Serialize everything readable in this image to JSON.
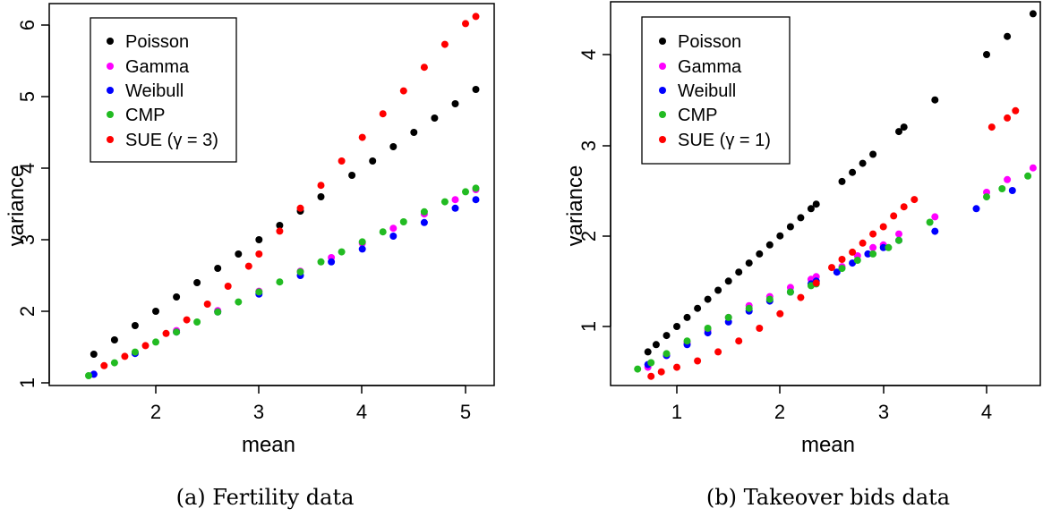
{
  "chart_data": [
    {
      "type": "scatter",
      "caption": "(a) Fertility data",
      "xlabel": "mean",
      "ylabel": "variance",
      "xlim": [
        1.3,
        5.2
      ],
      "ylim": [
        0.95,
        6.3
      ],
      "xticks": [
        "2",
        "3",
        "4",
        "5"
      ],
      "yticks": [
        "1",
        "2",
        "3",
        "4",
        "5",
        "6"
      ],
      "legend": {
        "placement": "top-left",
        "entries": [
          {
            "label": "Poisson",
            "color": "#000000"
          },
          {
            "label": "Gamma",
            "color": "#ff00ff"
          },
          {
            "label": "Weibull",
            "color": "#0000ff"
          },
          {
            "label": "CMP",
            "color": "#22bb22"
          },
          {
            "label": "SUE (γ = 3)",
            "color": "#ff0000"
          }
        ]
      },
      "series": [
        {
          "name": "Poisson",
          "color": "#000000",
          "x": [
            1.4,
            1.6,
            1.8,
            2.0,
            2.2,
            2.4,
            2.6,
            2.8,
            3.0,
            3.2,
            3.4,
            3.6,
            3.9,
            4.1,
            4.3,
            4.5,
            4.7,
            4.9,
            5.1
          ],
          "y": [
            1.4,
            1.6,
            1.8,
            2.0,
            2.2,
            2.4,
            2.6,
            2.8,
            3.0,
            3.2,
            3.4,
            3.6,
            3.9,
            4.1,
            4.3,
            4.5,
            4.7,
            4.9,
            5.1
          ]
        },
        {
          "name": "Gamma",
          "color": "#ff00ff",
          "x": [
            1.4,
            1.8,
            2.2,
            2.6,
            3.0,
            3.4,
            3.7,
            4.0,
            4.3,
            4.6,
            4.9,
            5.1
          ],
          "y": [
            1.12,
            1.42,
            1.73,
            2.01,
            2.28,
            2.56,
            2.75,
            2.95,
            3.16,
            3.36,
            3.56,
            3.7
          ]
        },
        {
          "name": "Weibull",
          "color": "#0000ff",
          "x": [
            1.4,
            1.8,
            2.2,
            2.6,
            3.0,
            3.4,
            3.7,
            4.0,
            4.3,
            4.6,
            4.9,
            5.1
          ],
          "y": [
            1.12,
            1.41,
            1.71,
            1.99,
            2.24,
            2.5,
            2.69,
            2.87,
            3.05,
            3.24,
            3.44,
            3.56
          ]
        },
        {
          "name": "CMP",
          "color": "#22bb22",
          "x": [
            1.35,
            1.6,
            1.8,
            2.0,
            2.2,
            2.4,
            2.6,
            2.8,
            3.0,
            3.2,
            3.4,
            3.6,
            3.8,
            4.0,
            4.2,
            4.4,
            4.6,
            4.8,
            5.0,
            5.1
          ],
          "y": [
            1.1,
            1.28,
            1.43,
            1.57,
            1.71,
            1.85,
            1.99,
            2.13,
            2.27,
            2.41,
            2.55,
            2.69,
            2.83,
            2.97,
            3.11,
            3.25,
            3.39,
            3.53,
            3.67,
            3.72
          ]
        },
        {
          "name": "SUE (γ = 3)",
          "color": "#ff0000",
          "x": [
            1.5,
            1.7,
            1.9,
            2.1,
            2.3,
            2.5,
            2.7,
            2.9,
            3.0,
            3.2,
            3.4,
            3.6,
            3.8,
            4.0,
            4.2,
            4.4,
            4.6,
            4.8,
            5.0,
            5.1
          ],
          "y": [
            1.24,
            1.37,
            1.52,
            1.69,
            1.88,
            2.1,
            2.35,
            2.63,
            2.8,
            3.12,
            3.44,
            3.76,
            4.1,
            4.43,
            4.76,
            5.08,
            5.41,
            5.73,
            6.02,
            6.12
          ]
        }
      ]
    },
    {
      "type": "scatter",
      "caption": "(b) Takeover bids data",
      "xlabel": "mean",
      "ylabel": "variance",
      "xlim": [
        0.6,
        4.5
      ],
      "ylim": [
        0.3,
        4.6
      ],
      "xticks": [
        "1",
        "2",
        "3",
        "4"
      ],
      "yticks": [
        "1",
        "2",
        "3",
        "4"
      ],
      "legend": {
        "placement": "top-left",
        "entries": [
          {
            "label": "Poisson",
            "color": "#000000"
          },
          {
            "label": "Gamma",
            "color": "#ff00ff"
          },
          {
            "label": "Weibull",
            "color": "#0000ff"
          },
          {
            "label": "CMP",
            "color": "#22bb22"
          },
          {
            "label": "SUE (γ = 1)",
            "color": "#ff0000"
          }
        ]
      },
      "series": [
        {
          "name": "Poisson",
          "color": "#000000",
          "x": [
            0.72,
            0.8,
            0.9,
            1.0,
            1.1,
            1.2,
            1.3,
            1.4,
            1.5,
            1.6,
            1.7,
            1.8,
            1.9,
            2.0,
            2.1,
            2.2,
            2.3,
            2.35,
            2.6,
            2.7,
            2.8,
            2.9,
            3.15,
            3.2,
            3.5,
            4.0,
            4.2,
            4.45
          ],
          "y": [
            0.72,
            0.8,
            0.9,
            1.0,
            1.1,
            1.2,
            1.3,
            1.4,
            1.5,
            1.6,
            1.7,
            1.8,
            1.9,
            2.0,
            2.1,
            2.2,
            2.3,
            2.35,
            2.6,
            2.7,
            2.8,
            2.9,
            3.15,
            3.2,
            3.5,
            4.0,
            4.2,
            4.45
          ]
        },
        {
          "name": "Gamma",
          "color": "#ff00ff",
          "x": [
            0.72,
            0.9,
            1.1,
            1.3,
            1.5,
            1.7,
            1.9,
            2.1,
            2.3,
            2.35,
            2.6,
            2.75,
            2.9,
            3.0,
            3.15,
            3.5,
            4.0,
            4.2,
            4.45
          ],
          "y": [
            0.55,
            0.68,
            0.82,
            0.96,
            1.1,
            1.23,
            1.33,
            1.43,
            1.52,
            1.55,
            1.66,
            1.78,
            1.87,
            1.9,
            2.02,
            2.21,
            2.48,
            2.62,
            2.75
          ]
        },
        {
          "name": "Weibull",
          "color": "#0000ff",
          "x": [
            0.72,
            0.9,
            1.1,
            1.3,
            1.5,
            1.7,
            1.9,
            2.1,
            2.3,
            2.35,
            2.55,
            2.7,
            2.85,
            3.0,
            3.15,
            3.5,
            3.9,
            4.25
          ],
          "y": [
            0.58,
            0.68,
            0.8,
            0.93,
            1.05,
            1.17,
            1.28,
            1.38,
            1.47,
            1.5,
            1.6,
            1.7,
            1.8,
            1.87,
            1.95,
            2.05,
            2.3,
            2.5
          ]
        },
        {
          "name": "CMP",
          "color": "#22bb22",
          "x": [
            0.62,
            0.75,
            0.9,
            1.1,
            1.3,
            1.5,
            1.7,
            1.9,
            2.1,
            2.3,
            2.35,
            2.6,
            2.75,
            2.9,
            3.05,
            3.15,
            3.45,
            4.0,
            4.15,
            4.4
          ],
          "y": [
            0.53,
            0.6,
            0.7,
            0.84,
            0.98,
            1.1,
            1.2,
            1.3,
            1.38,
            1.45,
            1.47,
            1.64,
            1.73,
            1.8,
            1.87,
            1.95,
            2.15,
            2.43,
            2.52,
            2.66
          ]
        },
        {
          "name": "SUE (γ = 1)",
          "color": "#ff0000",
          "x": [
            0.75,
            0.85,
            1.0,
            1.2,
            1.4,
            1.6,
            1.8,
            2.0,
            2.2,
            2.35,
            2.5,
            2.6,
            2.7,
            2.8,
            2.9,
            3.0,
            3.1,
            3.2,
            3.3,
            4.05,
            4.2,
            4.28
          ],
          "y": [
            0.45,
            0.5,
            0.55,
            0.62,
            0.72,
            0.84,
            0.98,
            1.14,
            1.32,
            1.48,
            1.65,
            1.74,
            1.82,
            1.92,
            2.02,
            2.1,
            2.22,
            2.32,
            2.4,
            3.2,
            3.3,
            3.38
          ]
        }
      ]
    }
  ]
}
